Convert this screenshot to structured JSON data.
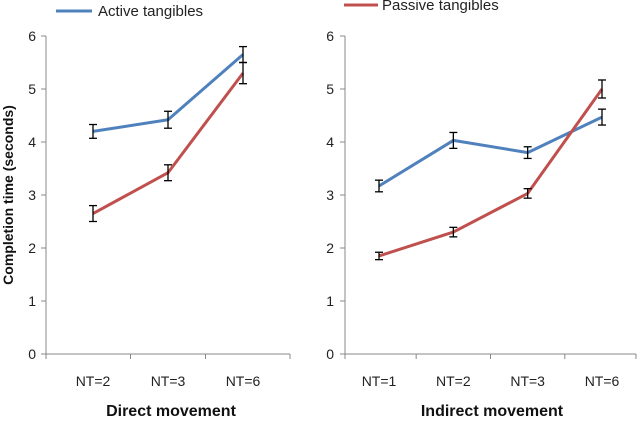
{
  "legend": {
    "active_label": "Active tangibles",
    "passive_label": "Passive tangibles"
  },
  "colors": {
    "active": "#4f81bd",
    "passive": "#c0504d",
    "axis": "#888888"
  },
  "chart_data": [
    {
      "type": "line",
      "xlabel": "Direct movement",
      "ylabel": "Completion time (seconds)",
      "ylim": [
        0,
        6
      ],
      "yticks": [
        "0",
        "1",
        "2",
        "3",
        "4",
        "5",
        "6"
      ],
      "grid": false,
      "legend_position": "top-left",
      "categories": [
        "NT=2",
        "NT=3",
        "NT=6"
      ],
      "series": [
        {
          "name": "Active tangibles",
          "values": [
            4.2,
            4.42,
            5.65
          ],
          "errors": [
            0.13,
            0.16,
            0.15
          ]
        },
        {
          "name": "Passive tangibles",
          "values": [
            2.65,
            3.42,
            5.3
          ],
          "errors": [
            0.15,
            0.15,
            0.2
          ]
        }
      ]
    },
    {
      "type": "line",
      "xlabel": "Indirect movement",
      "ylabel": "",
      "ylim": [
        0,
        6
      ],
      "yticks": [
        "0",
        "1",
        "2",
        "3",
        "4",
        "5",
        "6"
      ],
      "grid": false,
      "legend_position": "top-left",
      "categories": [
        "NT=1",
        "NT=2",
        "NT=3",
        "NT=6"
      ],
      "series": [
        {
          "name": "Active tangibles",
          "values": [
            3.17,
            4.03,
            3.8,
            4.47
          ],
          "errors": [
            0.11,
            0.15,
            0.11,
            0.15
          ]
        },
        {
          "name": "Passive tangibles",
          "values": [
            1.85,
            2.3,
            3.03,
            5.0
          ],
          "errors": [
            0.07,
            0.09,
            0.09,
            0.17
          ]
        }
      ]
    }
  ]
}
